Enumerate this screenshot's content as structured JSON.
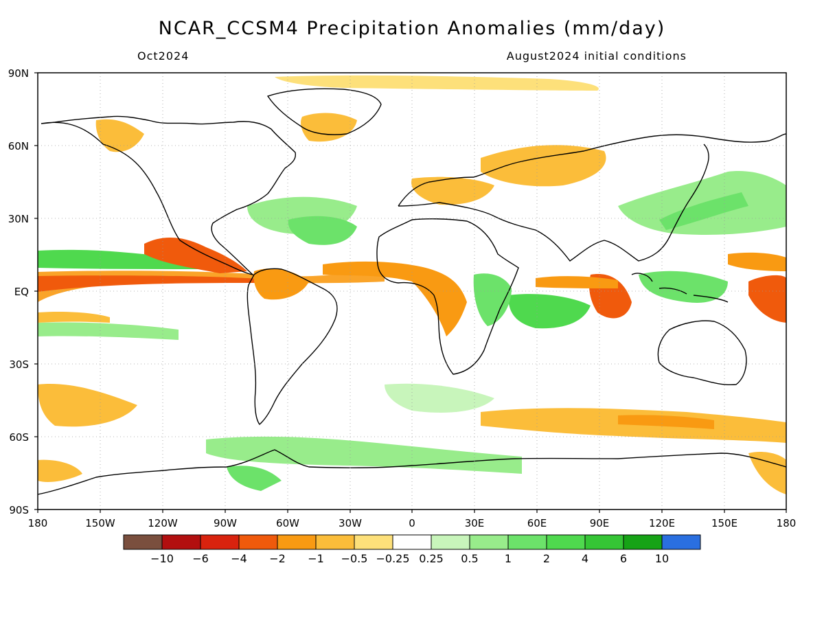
{
  "title": "NCAR_CCSM4 Precipitation Anomalies (mm/day)",
  "subtitle_left": "Oct2024",
  "subtitle_right": "August2024 initial conditions",
  "axes": {
    "lat_labels": [
      "90N",
      "60N",
      "30N",
      "EQ",
      "30S",
      "60S",
      "90S"
    ],
    "lon_labels": [
      "180",
      "150W",
      "120W",
      "90W",
      "60W",
      "30W",
      "0",
      "30E",
      "60E",
      "90E",
      "120E",
      "150E",
      "180"
    ],
    "grid": "dotted",
    "lat_range": [
      -90,
      90
    ],
    "lon_range": [
      -180,
      180
    ]
  },
  "colorbar": {
    "colors": [
      "#7a4f3e",
      "#b20f0f",
      "#d9230e",
      "#f05a0c",
      "#f99a12",
      "#fbbd3a",
      "#fde07a",
      "#ffffff",
      "#c8f5bb",
      "#98ec8b",
      "#6ce26a",
      "#4fd94e",
      "#35c535",
      "#16a316",
      "#2a6fe0"
    ],
    "labels": [
      "-10",
      "-6",
      "-4",
      "-2",
      "-1",
      "-0.5",
      "-0.25",
      "0.25",
      "0.5",
      "1",
      "2",
      "4",
      "6",
      "10"
    ]
  },
  "legend_colors": {
    "dry_strong": "#f05a0c",
    "dry_moderate": "#f99a12",
    "dry_weak": "#fde07a",
    "wet_weak": "#c8f5bb",
    "wet_moderate": "#6ce26a",
    "wet_strong": "#35c535",
    "coastline": "#000000"
  }
}
